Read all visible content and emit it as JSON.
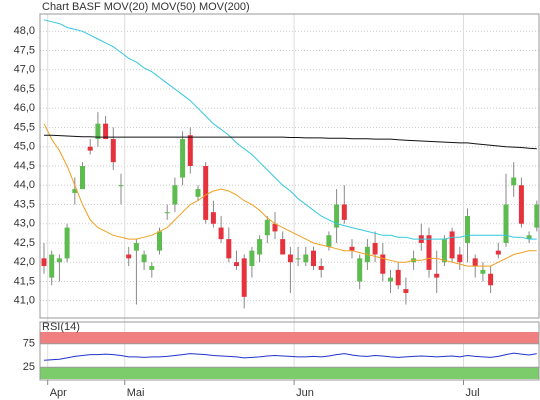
{
  "chart_data": [
    {
      "type": "candlestick",
      "title": "Chart BASF",
      "title_color": "#e07a4a",
      "categories": [
        null,
        "Apr",
        null,
        null,
        null,
        null,
        null,
        null,
        null,
        null,
        null,
        "Mai",
        null,
        null,
        null,
        null,
        null,
        null,
        null,
        null,
        null,
        null,
        null,
        null,
        null,
        null,
        null,
        null,
        null,
        null,
        null,
        null,
        null,
        "Jun",
        null,
        null,
        null,
        null,
        null,
        null,
        null,
        null,
        null,
        null,
        null,
        null,
        null,
        null,
        null,
        null,
        null,
        null,
        null,
        null,
        null,
        "Jul",
        null,
        null,
        null,
        null,
        null,
        null,
        null,
        null,
        null
      ],
      "ohlc": [
        [
          42.1,
          42.5,
          41.7,
          41.9
        ],
        [
          41.6,
          42.3,
          41.4,
          42.2
        ],
        [
          42.0,
          42.2,
          41.5,
          42.1
        ],
        [
          42.1,
          43.0,
          42.0,
          42.9
        ],
        [
          43.8,
          44.2,
          43.5,
          43.9
        ],
        [
          43.9,
          44.6,
          43.9,
          44.5
        ],
        [
          45.0,
          45.2,
          44.8,
          44.9
        ],
        [
          45.2,
          45.9,
          45.0,
          45.6
        ],
        [
          45.6,
          45.8,
          45.2,
          45.2
        ],
        [
          45.2,
          45.5,
          44.4,
          44.6
        ],
        [
          44.0,
          44.3,
          43.5,
          44.0
        ],
        [
          42.2,
          42.4,
          41.9,
          42.1
        ],
        [
          42.3,
          42.6,
          40.9,
          42.5
        ],
        [
          42.0,
          42.3,
          41.8,
          42.2
        ],
        [
          41.8,
          42.0,
          41.6,
          41.9
        ],
        [
          42.3,
          42.9,
          42.2,
          42.8
        ],
        [
          43.3,
          43.5,
          43.1,
          43.3
        ],
        [
          43.5,
          44.2,
          43.3,
          44.0
        ],
        [
          44.2,
          45.4,
          44.0,
          45.2
        ],
        [
          45.3,
          45.5,
          44.3,
          44.5
        ],
        [
          43.7,
          44.0,
          43.6,
          43.9
        ],
        [
          44.5,
          44.6,
          43.0,
          43.1
        ],
        [
          43.3,
          43.6,
          42.9,
          43.0
        ],
        [
          42.9,
          43.2,
          42.5,
          42.6
        ],
        [
          42.6,
          42.9,
          42.0,
          42.1
        ],
        [
          42.0,
          42.3,
          41.8,
          41.9
        ],
        [
          42.1,
          42.2,
          40.8,
          41.1
        ],
        [
          41.9,
          42.4,
          41.6,
          42.3
        ],
        [
          42.2,
          42.7,
          42.0,
          42.6
        ],
        [
          42.7,
          43.2,
          42.5,
          43.1
        ],
        [
          43.0,
          43.3,
          42.6,
          42.8
        ],
        [
          42.6,
          42.8,
          42.2,
          42.2
        ],
        [
          42.2,
          42.4,
          41.2,
          42.0
        ],
        [
          42.1,
          42.4,
          41.9,
          42.1
        ],
        [
          42.0,
          42.4,
          41.9,
          42.2
        ],
        [
          42.3,
          42.4,
          41.8,
          41.9
        ],
        [
          41.9,
          42.1,
          41.6,
          41.8
        ],
        [
          42.4,
          42.8,
          42.3,
          42.7
        ],
        [
          42.9,
          43.9,
          42.5,
          43.5
        ],
        [
          43.5,
          44.0,
          43.0,
          43.1
        ],
        [
          42.4,
          42.6,
          42.1,
          42.3
        ],
        [
          41.5,
          42.2,
          41.3,
          42.1
        ],
        [
          42.0,
          42.6,
          41.8,
          42.4
        ],
        [
          42.5,
          42.8,
          42.0,
          42.2
        ],
        [
          42.2,
          42.5,
          41.5,
          41.7
        ],
        [
          41.5,
          41.8,
          41.2,
          41.6
        ],
        [
          41.8,
          42.0,
          41.3,
          41.4
        ],
        [
          41.3,
          41.6,
          40.9,
          41.2
        ],
        [
          42.0,
          42.3,
          41.8,
          42.1
        ],
        [
          42.7,
          43.0,
          42.3,
          42.5
        ],
        [
          42.7,
          42.9,
          41.6,
          41.8
        ],
        [
          41.7,
          42.3,
          41.2,
          41.6
        ],
        [
          42.0,
          42.7,
          41.9,
          42.6
        ],
        [
          42.8,
          42.9,
          42.0,
          42.1
        ],
        [
          42.2,
          42.4,
          41.8,
          42.0
        ],
        [
          42.5,
          43.4,
          42.0,
          43.2
        ],
        [
          42.1,
          42.2,
          41.6,
          41.9
        ],
        [
          41.7,
          42.0,
          41.5,
          41.8
        ],
        [
          41.7,
          41.9,
          41.2,
          41.4
        ],
        [
          42.3,
          42.5,
          42.1,
          42.2
        ],
        [
          42.5,
          44.3,
          42.4,
          43.5
        ],
        [
          44.0,
          44.6,
          43.7,
          44.2
        ],
        [
          44.0,
          44.2,
          42.9,
          43.0
        ],
        [
          42.6,
          42.8,
          42.5,
          42.7
        ],
        [
          42.9,
          43.6,
          42.8,
          43.5
        ]
      ],
      "up_color": "#5dbb4f",
      "down_color": "#e5323c",
      "wick_color": "#888888",
      "series": [
        {
          "name": "MOV(20)",
          "color": "#f0a020",
          "values": [
            45.6,
            45.2,
            44.9,
            44.5,
            44.0,
            43.5,
            43.1,
            42.9,
            42.8,
            42.7,
            42.65,
            42.6,
            42.6,
            42.65,
            42.7,
            42.8,
            42.9,
            43.1,
            43.3,
            43.5,
            43.6,
            43.75,
            43.85,
            43.9,
            43.85,
            43.75,
            43.6,
            43.5,
            43.35,
            43.15,
            43.0,
            42.9,
            42.8,
            42.7,
            42.6,
            42.5,
            42.45,
            42.4,
            42.35,
            42.3,
            42.3,
            42.25,
            42.2,
            42.15,
            42.1,
            42.05,
            42.0,
            42.0,
            42.05,
            42.05,
            42.1,
            42.1,
            42.05,
            42.0,
            41.95,
            41.9,
            41.9,
            41.9,
            41.9,
            42.0,
            42.1,
            42.2,
            42.25,
            42.3,
            42.3
          ]
        },
        {
          "name": "MOV(50)",
          "color": "#33c8dd",
          "values": [
            48.3,
            48.25,
            48.2,
            48.1,
            48.05,
            48.0,
            47.9,
            47.8,
            47.7,
            47.6,
            47.45,
            47.3,
            47.2,
            47.05,
            46.95,
            46.8,
            46.65,
            46.5,
            46.35,
            46.2,
            46.0,
            45.8,
            45.6,
            45.45,
            45.3,
            45.1,
            44.95,
            44.8,
            44.6,
            44.4,
            44.2,
            44.0,
            43.85,
            43.65,
            43.5,
            43.35,
            43.2,
            43.1,
            43.0,
            42.95,
            42.9,
            42.85,
            42.8,
            42.75,
            42.7,
            42.7,
            42.65,
            42.65,
            42.6,
            42.6,
            42.6,
            42.6,
            42.6,
            42.65,
            42.65,
            42.7,
            42.7,
            42.7,
            42.7,
            42.7,
            42.7,
            42.65,
            42.65,
            42.6,
            42.6
          ]
        },
        {
          "name": "MOV(200)",
          "color": "#111111",
          "values": [
            45.3,
            45.3,
            45.29,
            45.28,
            45.27,
            45.26,
            45.26,
            45.25,
            45.25,
            45.25,
            45.25,
            45.25,
            45.25,
            45.25,
            45.25,
            45.25,
            45.25,
            45.25,
            45.25,
            45.25,
            45.25,
            45.25,
            45.25,
            45.25,
            45.25,
            45.25,
            45.25,
            45.25,
            45.25,
            45.25,
            45.25,
            45.25,
            45.24,
            45.24,
            45.23,
            45.23,
            45.23,
            45.22,
            45.22,
            45.22,
            45.21,
            45.21,
            45.21,
            45.2,
            45.2,
            45.2,
            45.18,
            45.17,
            45.16,
            45.15,
            45.14,
            45.13,
            45.12,
            45.11,
            45.1,
            45.1,
            45.08,
            45.06,
            45.04,
            45.02,
            45.0,
            44.99,
            44.98,
            44.96,
            44.95
          ]
        }
      ],
      "ylim": [
        40.55,
        48.45
      ],
      "yticks": [
        {
          "value": 41,
          "label": "41,0"
        },
        {
          "value": 41.5,
          "label": "41,5"
        },
        {
          "value": 42,
          "label": "42,0"
        },
        {
          "value": 42.5,
          "label": "42,5"
        },
        {
          "value": 43,
          "label": "43,0"
        },
        {
          "value": 43.5,
          "label": "43,5"
        },
        {
          "value": 44,
          "label": "44,0"
        },
        {
          "value": 44.5,
          "label": "44,5"
        },
        {
          "value": 45,
          "label": "45,0"
        },
        {
          "value": 45.5,
          "label": "45,5"
        },
        {
          "value": 46,
          "label": "46,0"
        },
        {
          "value": 46.5,
          "label": "46,5"
        },
        {
          "value": 47,
          "label": "47,0"
        },
        {
          "value": 47.5,
          "label": "47,5"
        },
        {
          "value": 48,
          "label": "48,0"
        }
      ],
      "grid": true
    },
    {
      "type": "line",
      "title": "RSI(14)",
      "series": [
        {
          "color": "#2233cc",
          "values": [
            40,
            41,
            42,
            45,
            48,
            50,
            52,
            52,
            53,
            52,
            50,
            47,
            47,
            46,
            47,
            47,
            48,
            50,
            52,
            54,
            53,
            52,
            50,
            49,
            48,
            47,
            45,
            46,
            47,
            49,
            50,
            49,
            48,
            47,
            47,
            48,
            47,
            49,
            52,
            54,
            51,
            49,
            48,
            50,
            49,
            47,
            46,
            47,
            48,
            49,
            48,
            47,
            48,
            49,
            47,
            50,
            48,
            47,
            46,
            48,
            52,
            55,
            53,
            51,
            54
          ]
        }
      ],
      "ylim": [
        0,
        100
      ],
      "yticks": [
        25,
        75
      ],
      "high_band_color": "#f08080",
      "low_band_color": "#7ccc6c"
    }
  ]
}
